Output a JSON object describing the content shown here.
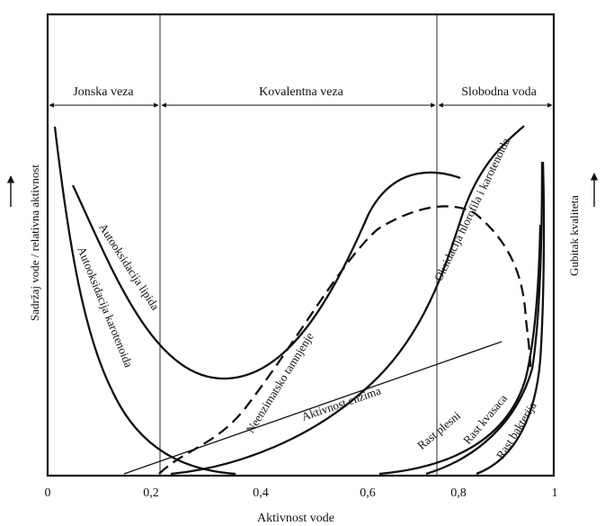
{
  "figure": {
    "zones": {
      "ionic": "Jonska veza",
      "covalent": "Kovalentna veza",
      "free": "Slobodna voda"
    },
    "y_axis_left": "Sadržaj vode / relativna aktivnost",
    "y_axis_right": "Gubitak kvaliteta",
    "x_axis": "Aktivnost vode",
    "x_ticks": [
      "0",
      "0,2",
      "0,4",
      "0,6",
      "0,8",
      "1"
    ],
    "curve_labels": {
      "lipid_autooxidation": "Autooksidacija lipida",
      "carotenoid_autooxidation": "Autooksidacija karotenoida",
      "nonenzymatic_browning": "Neenzimatsko tamnjenje",
      "enzyme_activity": "Aktivnost enzima",
      "chlorophyll_oxidation": "Oksidacija hlorofila i karotenoida",
      "mold_growth": "Rast plesni",
      "yeast_growth": "Rast kvasaca",
      "bacteria_growth": "Rast bakterija"
    },
    "colors": {
      "line": "#111111",
      "background": "#ffffff"
    }
  }
}
